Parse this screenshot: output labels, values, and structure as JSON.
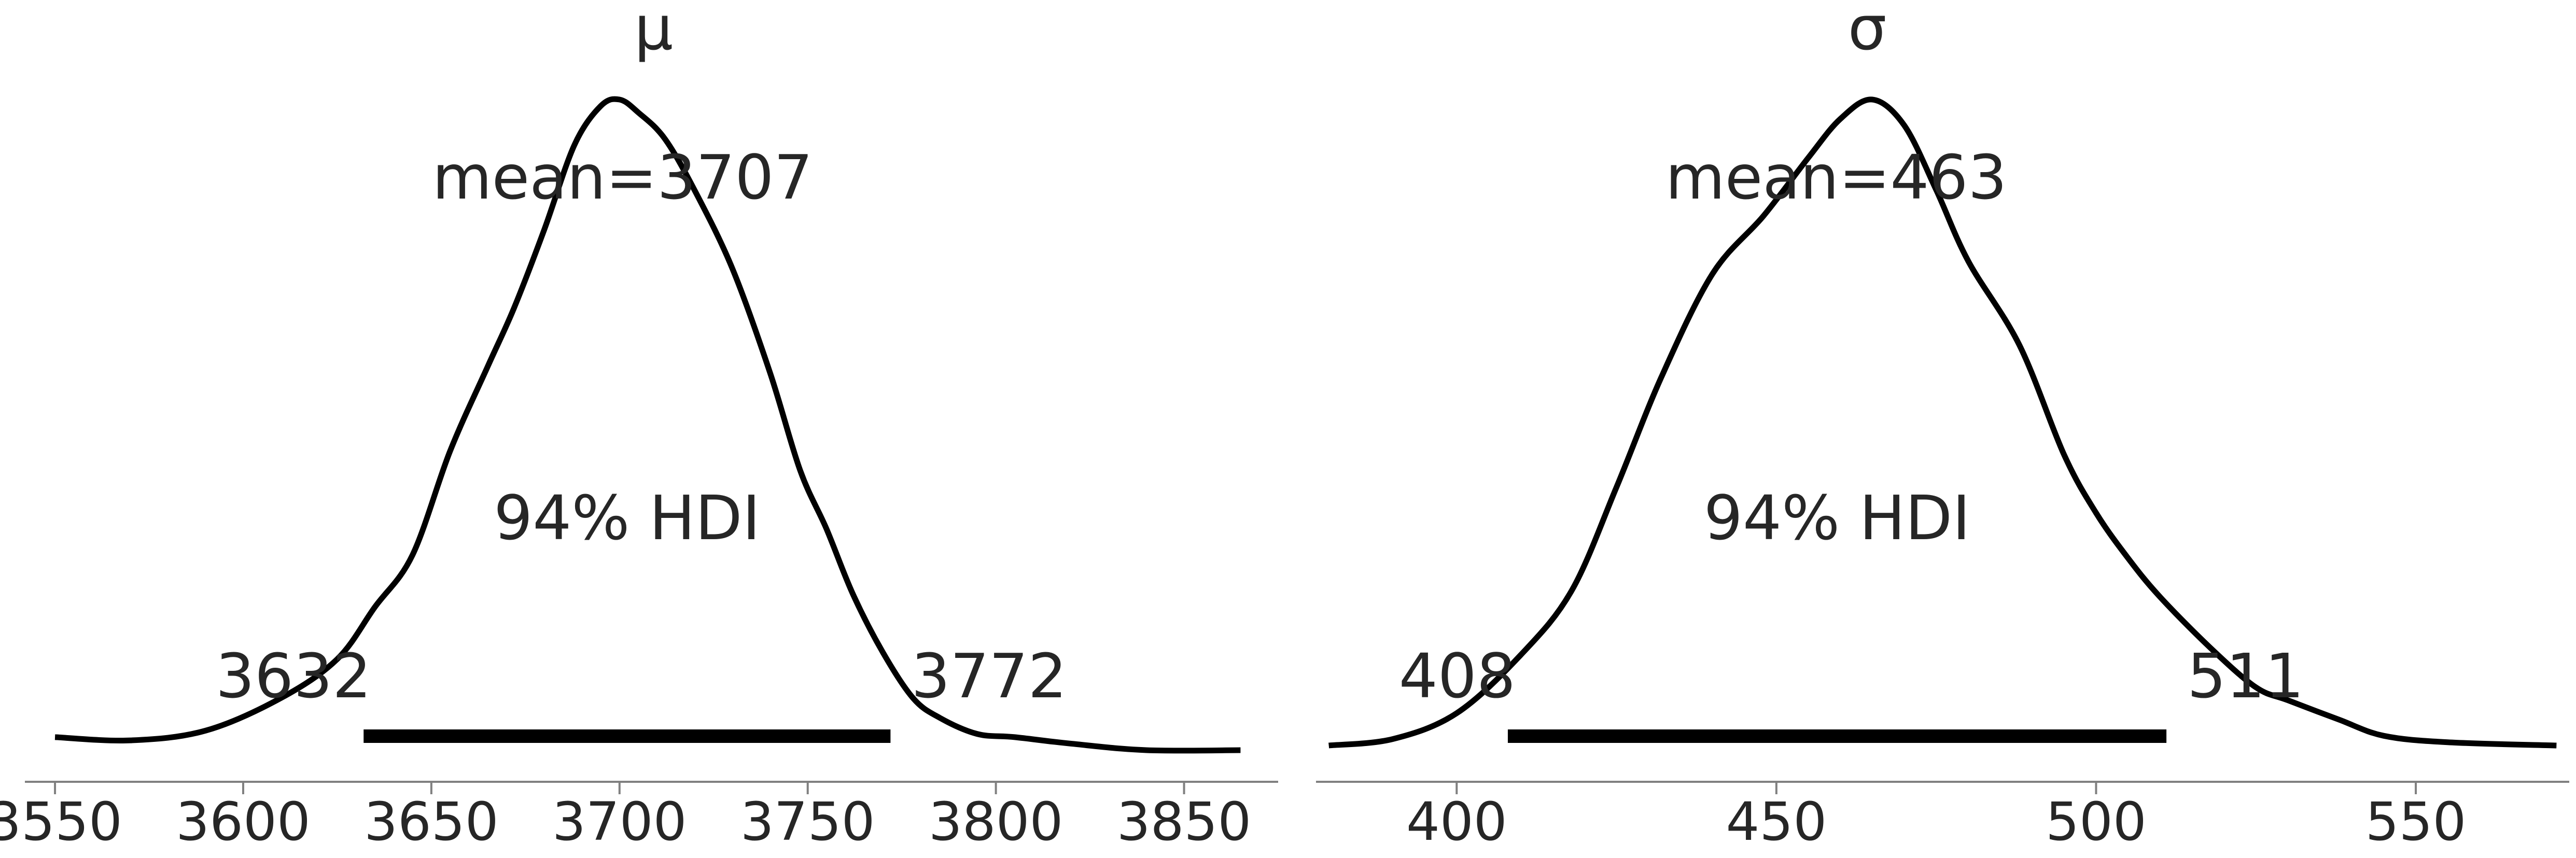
{
  "chart_data": [
    {
      "type": "area",
      "title": "μ",
      "xlabel": "",
      "ylabel": "",
      "xlim": [
        3542,
        3875
      ],
      "xticks": [
        3550,
        3600,
        3650,
        3700,
        3750,
        3800,
        3850
      ],
      "mean": 3707,
      "mean_label": "mean=3707",
      "hdi": [
        3632,
        3772
      ],
      "hdi_label": "94% HDI",
      "hdi_low_label": "3632",
      "hdi_high_label": "3772",
      "density": {
        "x": [
          3550,
          3570,
          3590,
          3610,
          3625,
          3635,
          3645,
          3655,
          3665,
          3672,
          3680,
          3688,
          3695,
          3700,
          3705,
          3712,
          3720,
          3730,
          3740,
          3748,
          3755,
          3762,
          3770,
          3778,
          3785,
          3795,
          3805,
          3820,
          3840,
          3865
        ],
        "y": [
          0.02,
          0.015,
          0.03,
          0.08,
          0.14,
          0.22,
          0.3,
          0.46,
          0.59,
          0.68,
          0.8,
          0.93,
          0.99,
          1.0,
          0.98,
          0.94,
          0.86,
          0.74,
          0.58,
          0.43,
          0.34,
          0.24,
          0.15,
          0.08,
          0.05,
          0.025,
          0.02,
          0.01,
          0.0,
          0.0
        ]
      }
    },
    {
      "type": "area",
      "title": "σ",
      "xlabel": "",
      "ylabel": "",
      "xlim": [
        378,
        574
      ],
      "xticks": [
        400,
        450,
        500,
        550
      ],
      "mean": 463,
      "mean_label": "mean=463",
      "hdi": [
        408,
        511
      ],
      "hdi_label": "94% HDI",
      "hdi_low_label": "408",
      "hdi_high_label": "511",
      "density": {
        "x": [
          380,
          390,
          400,
          410,
          418,
          425,
          432,
          440,
          448,
          455,
          460,
          465,
          470,
          475,
          480,
          488,
          495,
          500,
          505,
          510,
          518,
          525,
          530,
          538,
          545,
          555,
          572
        ],
        "y": [
          0.0,
          0.01,
          0.05,
          0.14,
          0.24,
          0.4,
          0.57,
          0.73,
          0.82,
          0.91,
          0.97,
          1.0,
          0.96,
          0.86,
          0.75,
          0.62,
          0.45,
          0.36,
          0.29,
          0.23,
          0.15,
          0.09,
          0.07,
          0.04,
          0.015,
          0.005,
          0.0
        ]
      }
    }
  ]
}
